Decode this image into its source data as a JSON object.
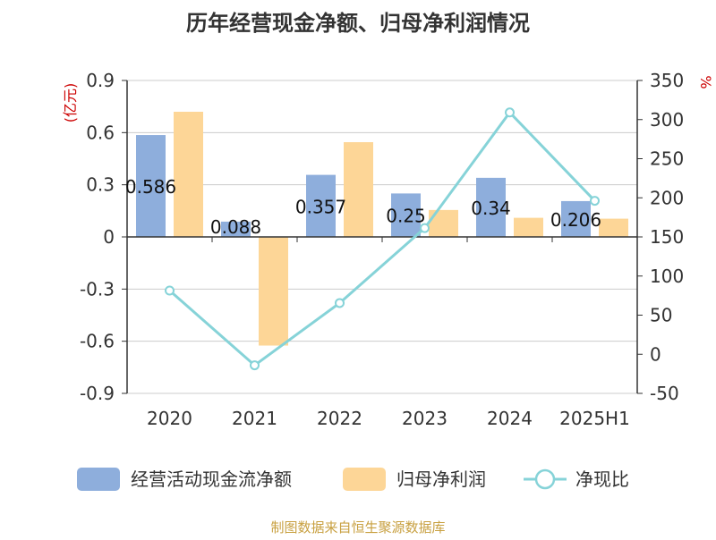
{
  "chart_data": {
    "type": "bar",
    "title": "历年经营现金净额、归母净利润情况",
    "categories": [
      "2020",
      "2021",
      "2022",
      "2023",
      "2024",
      "2025H1"
    ],
    "left_axis": {
      "label": "(亿元)",
      "ylim": [
        -0.9,
        0.9
      ],
      "ticks": [
        "-0.9",
        "-0.6",
        "-0.3",
        "0",
        "0.3",
        "0.6",
        "0.9"
      ]
    },
    "right_axis": {
      "label": "%",
      "ylim": [
        -50,
        350
      ],
      "ticks": [
        "-50",
        "0",
        "50",
        "100",
        "150",
        "200",
        "250",
        "300",
        "350"
      ]
    },
    "series": [
      {
        "name": "经营活动现金流净额",
        "type": "bar",
        "axis": "left",
        "color": "#8eaedc",
        "values": [
          0.586,
          0.088,
          0.357,
          0.25,
          0.34,
          0.206
        ],
        "labels": [
          "0.586",
          "0.088",
          "0.357",
          "0.25",
          "0.34",
          "0.206"
        ]
      },
      {
        "name": "归母净利润",
        "type": "bar",
        "axis": "left",
        "color": "#fdd697",
        "values": [
          0.72,
          -0.625,
          0.545,
          0.155,
          0.11,
          0.105
        ]
      },
      {
        "name": "净现比",
        "type": "line",
        "axis": "right",
        "color": "#86d3d8",
        "values": [
          81.4,
          -14.1,
          65.5,
          161.3,
          309.1,
          196.2
        ]
      }
    ],
    "grid": true,
    "legend_position": "bottom"
  },
  "footer": {
    "source": "制图数据来自恒生聚源数据库"
  }
}
